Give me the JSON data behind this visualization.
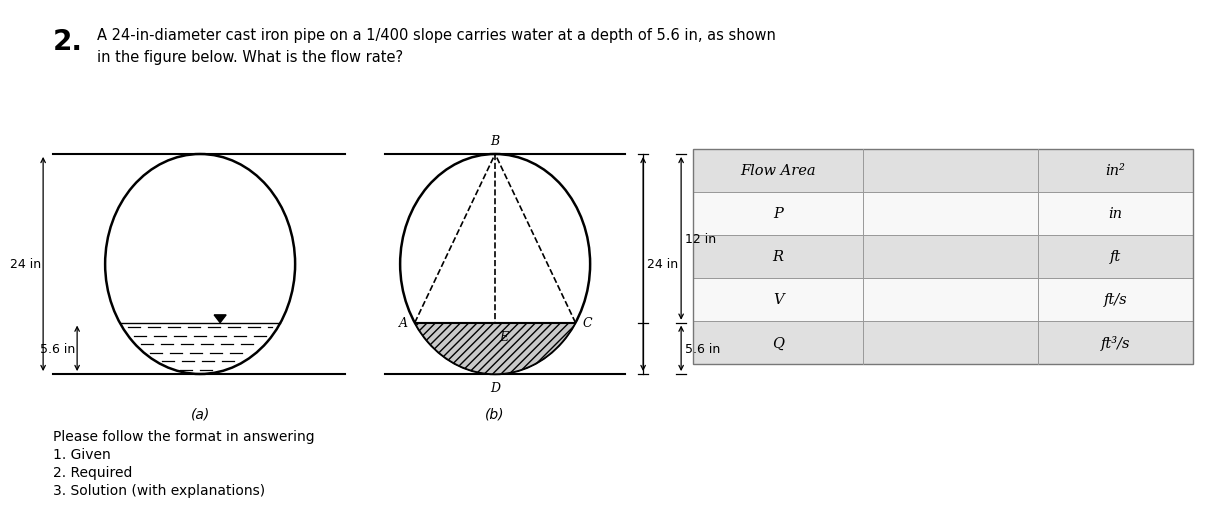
{
  "title_number": "2.",
  "title_text": "A 24-in-diameter cast iron pipe on a 1/400 slope carries water at a depth of 5.6 in, as shown\nin the figure below. What is the flow rate?",
  "fig_label_a": "(a)",
  "fig_label_b": "(b)",
  "label_24in_left": "24 in",
  "label_56in_left": "5.6 in",
  "label_24in_right": "24 in",
  "label_12in_right": "12 in",
  "label_56in_right": "5.6 in",
  "table_row0_label": "Flow Area",
  "table_row0_unit": "in²",
  "table_row1_label": "P",
  "table_row1_unit": "in",
  "table_row2_label": "R",
  "table_row2_unit": "ft",
  "table_row3_label": "V",
  "table_row3_unit": "ft/s",
  "table_row4_label": "Q",
  "table_row4_unit": "ft³/s",
  "bg_color": "#ffffff",
  "table_shade": "#e0e0e0",
  "table_white": "#f8f8f8",
  "instructions_line1": "Please follow the format in answering",
  "instructions_line2": "1. Given",
  "instructions_line3": "2. Required",
  "instructions_line4": "3. Solution (with explanations)"
}
